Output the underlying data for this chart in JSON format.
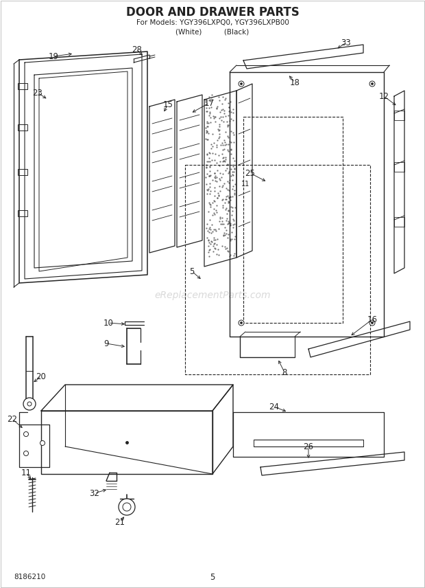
{
  "title": "DOOR AND DRAWER PARTS",
  "subtitle1": "For Models: YGY396LXPQ0, YGY396LXPB00",
  "subtitle2": "(White)          (Black)",
  "part_number": "8186210",
  "page_number": "5",
  "bg_color": "#ffffff",
  "line_color": "#222222",
  "watermark": "eReplacementParts.com"
}
